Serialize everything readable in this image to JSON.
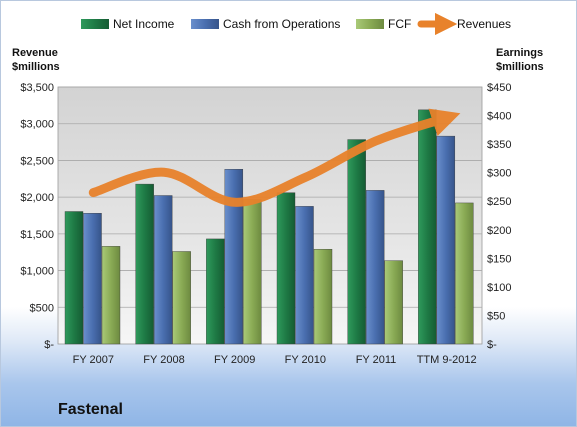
{
  "company_label": "Fastenal",
  "chart_data": {
    "type": "bar",
    "categories": [
      "FY 2007",
      "FY 2008",
      "FY 2009",
      "FY 2010",
      "FY 2011",
      "TTM 9-2012"
    ],
    "series": [
      {
        "name": "Net Income",
        "axis": "right",
        "color": "#1e7a45",
        "values": [
          232,
          280,
          184,
          265,
          358,
          410
        ]
      },
      {
        "name": "Cash from Operations",
        "axis": "right",
        "color": "#4a6fb0",
        "values": [
          229,
          260,
          306,
          241,
          269,
          364
        ]
      },
      {
        "name": "FCF",
        "axis": "right",
        "color": "#8aab55",
        "values": [
          171,
          162,
          253,
          166,
          146,
          247
        ]
      }
    ],
    "line_series": {
      "name": "Revenues",
      "axis": "left",
      "color": "#e8822b",
      "values": [
        2062,
        2340,
        1930,
        2269,
        2766,
        3080
      ]
    },
    "left_axis": {
      "title_lines": [
        "Revenue",
        "$millions"
      ],
      "ylim": [
        0,
        3500
      ],
      "ticks": [
        0,
        500,
        1000,
        1500,
        2000,
        2500,
        3000,
        3500
      ],
      "tick_labels": [
        "$-",
        "$500",
        "$1,000",
        "$1,500",
        "$2,000",
        "$2,500",
        "$3,000",
        "$3,500"
      ]
    },
    "right_axis": {
      "title_lines": [
        "Earnings",
        "$millions"
      ],
      "ylim": [
        0,
        450
      ],
      "ticks": [
        0,
        50,
        100,
        150,
        200,
        250,
        300,
        350,
        400,
        450
      ],
      "tick_labels": [
        "$-",
        "$50",
        "$100",
        "$150",
        "$200",
        "$250",
        "$300",
        "$350",
        "$400",
        "$450"
      ]
    },
    "grid": true,
    "legend_position": "top"
  }
}
